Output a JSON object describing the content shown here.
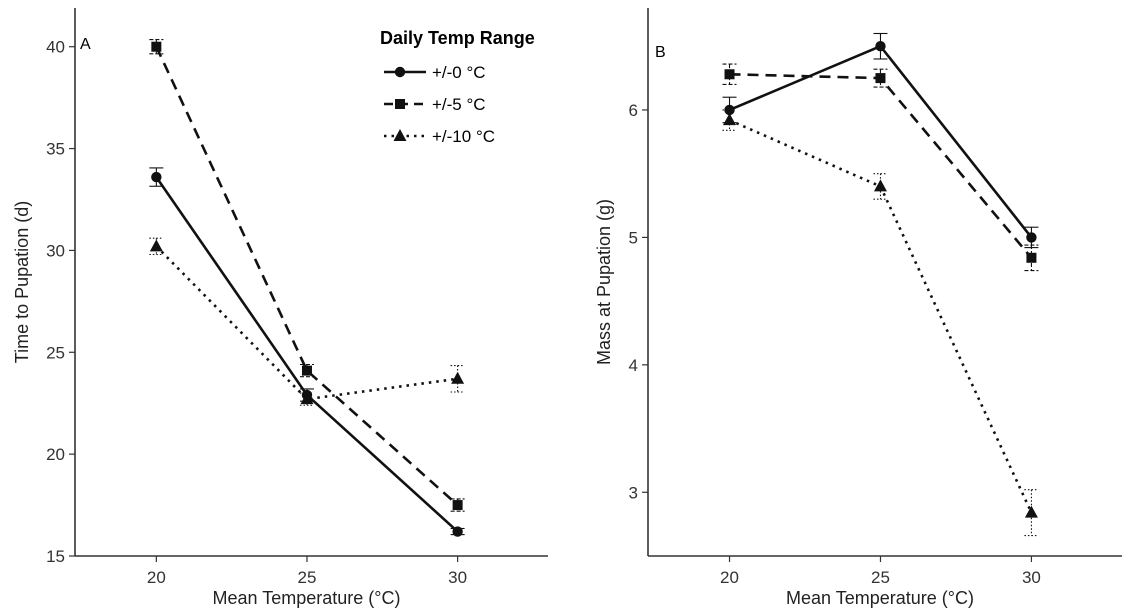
{
  "chart_data": [
    {
      "type": "line",
      "panel_label": "A",
      "xlabel": "Mean Temperature (°C)",
      "ylabel": "Time to Pupation (d)",
      "x": [
        20,
        25,
        30
      ],
      "xticks": [
        "20",
        "25",
        "30"
      ],
      "xlim": [
        17.3,
        33
      ],
      "yticks": [
        "15",
        "20",
        "25",
        "30",
        "35",
        "40"
      ],
      "ylim": [
        15,
        41.9
      ],
      "grid": false,
      "series": [
        {
          "name": "+/-0 °C",
          "style": "solid",
          "marker": "circle",
          "values": [
            33.6,
            22.9,
            16.2
          ],
          "err": [
            0.45,
            0.3,
            0.15
          ]
        },
        {
          "name": "+/-5 °C",
          "style": "dashed",
          "marker": "square",
          "values": [
            40.0,
            24.1,
            17.5
          ],
          "err": [
            0.35,
            0.3,
            0.3
          ]
        },
        {
          "name": "+/-10 °C",
          "style": "dotted",
          "marker": "triangle",
          "values": [
            30.2,
            22.7,
            23.7
          ],
          "err": [
            0.4,
            0.3,
            0.65
          ]
        }
      ]
    },
    {
      "type": "line",
      "panel_label": "B",
      "xlabel": "Mean Temperature (°C)",
      "ylabel": "Mass at Pupation (g)",
      "x": [
        20,
        25,
        30
      ],
      "xticks": [
        "20",
        "25",
        "30"
      ],
      "xlim": [
        17.3,
        33
      ],
      "yticks": [
        "3",
        "4",
        "5",
        "6"
      ],
      "ylim": [
        2.5,
        6.8
      ],
      "grid": false,
      "series": [
        {
          "name": "+/-0 °C",
          "style": "solid",
          "marker": "circle",
          "values": [
            6.0,
            6.5,
            5.0
          ],
          "err": [
            0.1,
            0.1,
            0.08
          ]
        },
        {
          "name": "+/-5 °C",
          "style": "dashed",
          "marker": "square",
          "values": [
            6.28,
            6.25,
            4.84
          ],
          "err": [
            0.08,
            0.07,
            0.1
          ]
        },
        {
          "name": "+/-10 °C",
          "style": "dotted",
          "marker": "triangle",
          "values": [
            5.92,
            5.4,
            2.84
          ],
          "err": [
            0.08,
            0.1,
            0.18
          ]
        }
      ]
    }
  ],
  "legend": {
    "title": "Daily Temp Range",
    "placement": "top-right of panel A",
    "entries": [
      "+/-0 °C",
      "+/-5 °C",
      "+/-10 °C"
    ]
  }
}
